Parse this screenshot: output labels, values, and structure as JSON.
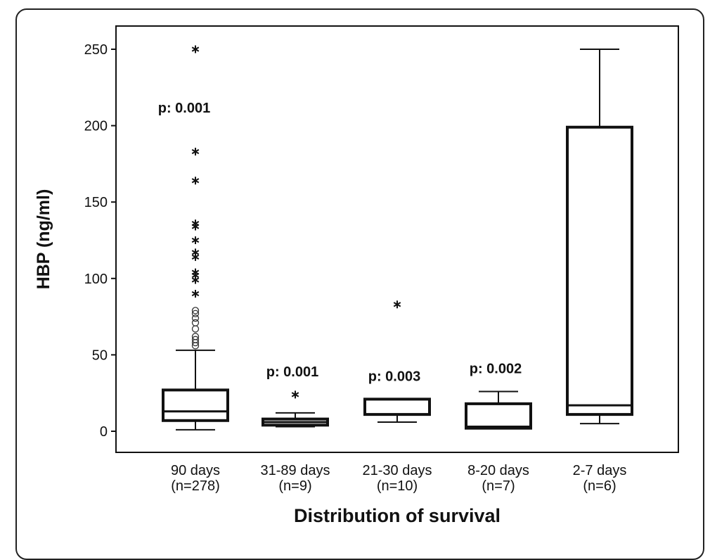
{
  "chart_data": {
    "type": "boxplot",
    "title": "",
    "xlabel": "Distribution of survival",
    "ylabel": "HBP (ng/ml)",
    "ylim": [
      0,
      250
    ],
    "yticks": [
      0,
      50,
      100,
      150,
      200,
      250
    ],
    "grid": false,
    "groups": [
      {
        "label": "90 days",
        "n": "(n=278)",
        "min": 1,
        "q1": 7,
        "median": 13,
        "q3": 27,
        "max": 53,
        "p": "p: 0.001",
        "outliers_circle": [
          56,
          58,
          60,
          62,
          67,
          71,
          74,
          77,
          79
        ],
        "outliers_star": [
          90,
          99,
          102,
          104,
          114,
          117,
          125,
          134,
          136,
          164,
          183,
          250
        ]
      },
      {
        "label": "31-89 days",
        "n": "(n=9)",
        "min": 3,
        "q1": 4,
        "median": 6,
        "q3": 8,
        "max": 12,
        "p": "p: 0.001",
        "outliers_circle": [],
        "outliers_star": [
          24
        ]
      },
      {
        "label": "21-30 days",
        "n": "(n=10)",
        "min": 6,
        "q1": 11,
        "median": 11,
        "q3": 21,
        "max": 21,
        "p": "p: 0.003",
        "outliers_circle": [],
        "outliers_star": [
          83
        ]
      },
      {
        "label": "8-20 days",
        "n": "(n=7)",
        "min": 2,
        "q1": 2,
        "median": 3,
        "q3": 18,
        "max": 26,
        "p": "p: 0.002",
        "outliers_circle": [],
        "outliers_star": []
      },
      {
        "label": "2-7 days",
        "n": "(n=6)",
        "min": 5,
        "q1": 11,
        "median": 17,
        "q3": 199,
        "max": 250,
        "p": "",
        "outliers_circle": [],
        "outliers_star": []
      }
    ]
  }
}
